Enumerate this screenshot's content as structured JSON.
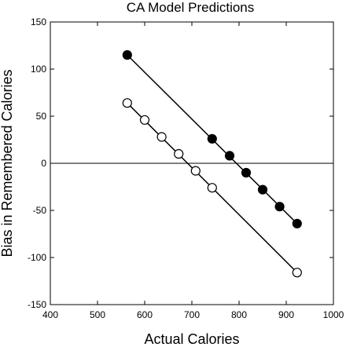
{
  "chart_data": {
    "type": "scatter",
    "title": "CA Model Predictions",
    "xlabel": "Actual Calories",
    "ylabel": "Bias in Remembered Calories",
    "xlim": [
      400,
      1000
    ],
    "ylim": [
      -150,
      150
    ],
    "xticks": [
      400,
      500,
      600,
      700,
      800,
      900,
      1000
    ],
    "yticks": [
      -150,
      -100,
      -50,
      0,
      50,
      100,
      150
    ],
    "zero_line": true,
    "grid": false,
    "legend": "none",
    "series": [
      {
        "marker": "filled-circle",
        "color": "#000000",
        "fit_line": [
          [
            563,
            115
          ],
          [
            923,
            -64
          ]
        ],
        "x": [
          563,
          743,
          780,
          815,
          850,
          886,
          923
        ],
        "y": [
          115,
          26,
          8,
          -10,
          -28,
          -46,
          -64
        ]
      },
      {
        "marker": "open-circle",
        "color": "#000000",
        "fit_line": [
          [
            563,
            64
          ],
          [
            923,
            -116
          ]
        ],
        "x": [
          563,
          600,
          636,
          672,
          708,
          743,
          923
        ],
        "y": [
          64,
          46,
          28,
          10,
          -8,
          -26,
          -116
        ]
      }
    ]
  }
}
